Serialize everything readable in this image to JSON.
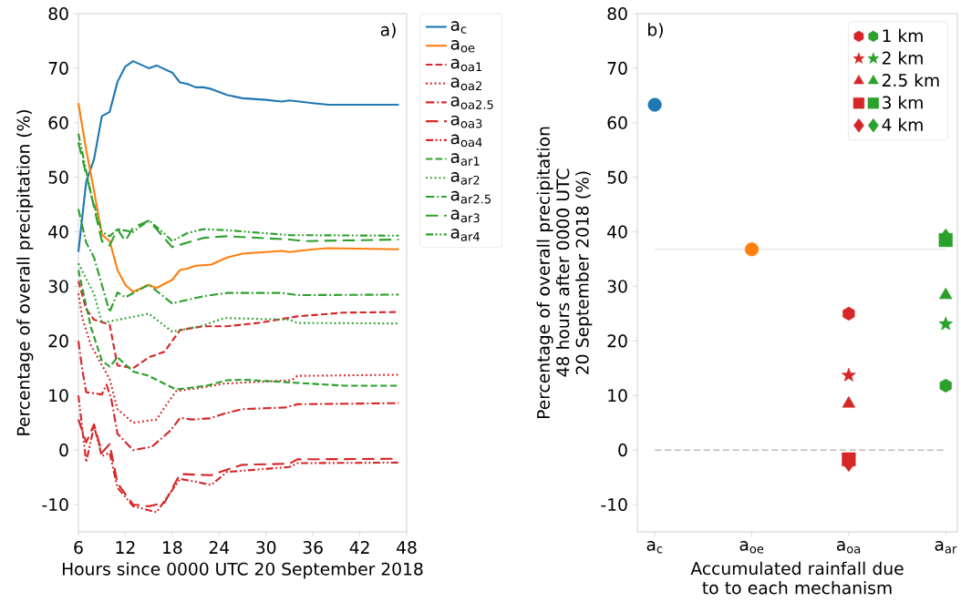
{
  "chart_data": [
    {
      "type": "line",
      "xlabel": "Hours since 0000 UTC 20 September 2018",
      "ylabel": "Percentage of overall precipitation (%)",
      "annotations": [
        "a)"
      ],
      "xlim": [
        6,
        48
      ],
      "ylim": [
        -15,
        80
      ],
      "xticks": [
        6,
        12,
        18,
        24,
        30,
        36,
        42,
        48
      ],
      "yticks": [
        -10,
        0,
        10,
        20,
        30,
        40,
        50,
        60,
        70,
        80
      ],
      "legend": "right",
      "series": [
        {
          "name": "a$_{c}$",
          "color": "#1f77b4",
          "line_style": "solid",
          "x": [
            6,
            7,
            8,
            9,
            10,
            11,
            12,
            13,
            15,
            16,
            18,
            19,
            20,
            21,
            22,
            23,
            25,
            27,
            30,
            32,
            33,
            36,
            38,
            47
          ],
          "values": [
            36.3,
            49.2,
            53.3,
            61.2,
            62,
            67.5,
            70.3,
            71.3,
            70,
            70.5,
            69.2,
            67.4,
            67.1,
            66.5,
            66.5,
            66.2,
            65.1,
            64.5,
            64.2,
            63.9,
            64.1,
            63.6,
            63.3,
            63.3
          ]
        },
        {
          "name": "a$_{oe}$",
          "color": "#ff7f0e",
          "line_style": "solid",
          "x": [
            6,
            7,
            8,
            9,
            10,
            11,
            12,
            13,
            15,
            16,
            18,
            19,
            20,
            21,
            23,
            25,
            27,
            32,
            33,
            36,
            38,
            47
          ],
          "values": [
            63.6,
            55,
            47.5,
            39.5,
            38.3,
            33,
            30.3,
            29,
            30.3,
            29.7,
            31.2,
            33,
            33.3,
            33.8,
            34,
            35.3,
            36,
            36.5,
            36.3,
            36.8,
            37,
            36.8
          ]
        },
        {
          "name": "a$_{oa1}$",
          "color": "#d62728",
          "line_style": "dashed",
          "x": [
            6,
            7,
            8,
            10,
            11,
            13,
            15,
            17,
            19,
            22,
            25,
            29,
            34,
            40,
            47
          ],
          "values": [
            31,
            25.8,
            23.9,
            23,
            15.5,
            15,
            17,
            18,
            22,
            22.7,
            22.7,
            23.3,
            24.5,
            25.2,
            25.3
          ]
        },
        {
          "name": "a$_{oa2}$",
          "color": "#d62728",
          "line_style": "dotted",
          "x": [
            6,
            6.5,
            7.6,
            9,
            10,
            11,
            13,
            16,
            17.4,
            18.5,
            21.6,
            24.7,
            33.3,
            34,
            47
          ],
          "values": [
            28.7,
            24.2,
            19.2,
            15.6,
            13,
            7.5,
            5,
            5.6,
            8.6,
            10.8,
            11.4,
            12.2,
            12.8,
            13.6,
            13.8
          ]
        },
        {
          "name": "a$_{oa2.5}$",
          "color": "#d62728",
          "line_style": "dashdot",
          "x": [
            6,
            6.5,
            7,
            9,
            9.6,
            10.2,
            11,
            13,
            15.4,
            17.8,
            19,
            20.5,
            22.8,
            24.7,
            27,
            32.5,
            34,
            47
          ],
          "values": [
            20,
            14.7,
            10.6,
            10.2,
            12,
            9.4,
            3,
            0,
            0.6,
            3.6,
            5.9,
            5.6,
            5.8,
            6.7,
            7.5,
            7.8,
            8.4,
            8.6
          ]
        },
        {
          "name": "a$_{oa3}$",
          "color": "#d62728",
          "line_style": "longdash",
          "x": [
            6,
            7,
            8,
            9,
            10,
            11,
            13,
            15,
            17,
            19,
            23,
            25,
            27,
            33,
            34,
            47
          ],
          "values": [
            5.6,
            1.4,
            4.7,
            -0.5,
            1.1,
            -6.1,
            -10,
            -10.3,
            -9.7,
            -4.4,
            -4.6,
            -3.6,
            -2.7,
            -2.5,
            -1.7,
            -1.6
          ]
        },
        {
          "name": "a$_{oa4}$",
          "color": "#d62728",
          "line_style": "dashdotdot",
          "x": [
            6,
            7,
            8,
            9,
            10,
            11,
            13,
            16,
            19,
            21,
            23,
            25,
            27,
            33,
            34,
            47
          ],
          "values": [
            10,
            -2.2,
            4.4,
            -1.1,
            -0.5,
            -6.9,
            -10.3,
            -11.4,
            -5.3,
            -5.8,
            -6.4,
            -4,
            -3.8,
            -3.1,
            -2.4,
            -2.3
          ]
        },
        {
          "name": "a$_{ar1}$",
          "color": "#2ca02c",
          "line_style": "dashed",
          "x": [
            6,
            7.6,
            9,
            10,
            11,
            13,
            15,
            18.5,
            22.4,
            25,
            27,
            33,
            40,
            47
          ],
          "values": [
            33,
            22.5,
            16.4,
            15.3,
            17,
            14.4,
            13.6,
            11.1,
            11.8,
            12.8,
            12.9,
            12.4,
            11.8,
            11.8
          ]
        },
        {
          "name": "a$_{ar2}$",
          "color": "#2ca02c",
          "line_style": "dotted",
          "x": [
            6,
            8,
            9,
            11.5,
            15,
            18,
            21.6,
            24.7,
            33,
            34,
            47
          ],
          "values": [
            34.2,
            28.6,
            23.3,
            24,
            25,
            21.7,
            22.7,
            24.2,
            23.9,
            23.3,
            23.2
          ]
        },
        {
          "name": "a$_{ar2.5}$",
          "color": "#2ca02c",
          "line_style": "dashdot",
          "x": [
            6,
            7,
            8,
            10,
            11,
            12,
            15,
            18,
            22,
            25,
            32,
            34,
            47
          ],
          "values": [
            44.2,
            38,
            35.3,
            25.3,
            28.9,
            28,
            30.3,
            26.9,
            28.2,
            28.8,
            28.8,
            28.4,
            28.5
          ]
        },
        {
          "name": "a$_{ar3}$",
          "color": "#2ca02c",
          "line_style": "longdash",
          "x": [
            6,
            7.6,
            9,
            10,
            11,
            12,
            13,
            15,
            16,
            17.5,
            18,
            22,
            25,
            33,
            35,
            47
          ],
          "values": [
            56.4,
            47,
            38.3,
            37.5,
            40.5,
            38.3,
            40.8,
            42,
            40.5,
            38,
            37.2,
            38.9,
            39.2,
            38.6,
            38.3,
            38.6
          ]
        },
        {
          "name": "a$_{ar4}$",
          "color": "#2ca02c",
          "line_style": "dashdotdot",
          "x": [
            6,
            7.6,
            9,
            10,
            11,
            13,
            15,
            17,
            18,
            20,
            22,
            25,
            33,
            47
          ],
          "values": [
            58,
            47,
            40,
            39.2,
            40.5,
            40,
            42.1,
            39.7,
            38.3,
            39.8,
            40.5,
            40.3,
            39.4,
            39.3
          ]
        }
      ]
    },
    {
      "type": "scatter",
      "xlabel": "Accumulated rainfall due to to each mechanism",
      "ylabel": "Percentage of overall precipitation 48 hours after 0000 UTC 20 September 2018 (%)",
      "annotations": [
        "b)"
      ],
      "categories": [
        "a$_{c}$",
        "a$_{oe}$",
        "a$_{oa}$",
        "a$_{ar}$"
      ],
      "ylim": [
        -15,
        80
      ],
      "yticks": [
        -10,
        0,
        10,
        20,
        30,
        40,
        50,
        60,
        70,
        80
      ],
      "legend": "top right",
      "ref_lines": [
        {
          "axis": "y",
          "value": 36.8,
          "color": "#d0d0d0",
          "line_style": "solid"
        },
        {
          "axis": "y",
          "value": 0,
          "color": "#808080",
          "line_style": "dashed"
        }
      ],
      "series": [
        {
          "color": "#1f77b4",
          "marker": "circle",
          "values": [
            63.3,
            null,
            null,
            null
          ]
        },
        {
          "color": "#ff7f0e",
          "marker": "circle",
          "values": [
            null,
            36.8,
            null,
            null
          ]
        },
        {
          "name": "1 km",
          "colors": [
            null,
            null,
            "#d62728",
            "#2ca02c"
          ],
          "values": [
            null,
            null,
            25,
            11.8
          ]
        },
        {
          "name": "2 km",
          "marker": "star",
          "colors": [
            null,
            null,
            "#d62728",
            "#2ca02c"
          ],
          "values": [
            null,
            null,
            13.7,
            23.1
          ]
        },
        {
          "name": "2.5 km",
          "marker": "triangle",
          "colors": [
            null,
            null,
            "#d62728",
            "#2ca02c"
          ],
          "values": [
            null,
            null,
            8.5,
            28.4
          ]
        },
        {
          "name": "3 km",
          "marker": "square",
          "colors": [
            null,
            null,
            "#d62728",
            "#2ca02c"
          ],
          "values": [
            null,
            null,
            -1.7,
            38.5
          ]
        },
        {
          "name": "4 km",
          "marker": "diamond",
          "colors": [
            null,
            null,
            "#d62728",
            "#2ca02c"
          ],
          "values": [
            null,
            null,
            -2.4,
            39
          ]
        }
      ]
    }
  ]
}
